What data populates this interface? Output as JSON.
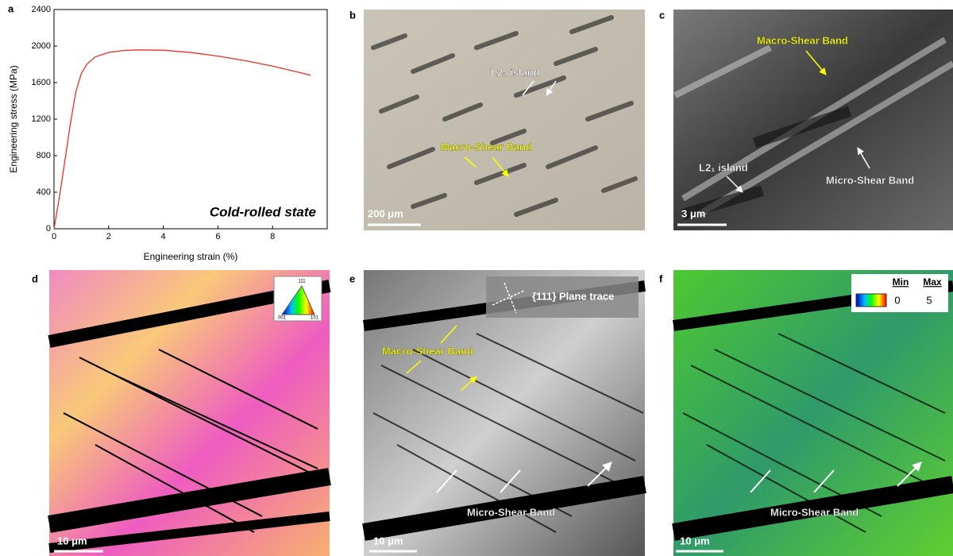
{
  "chart_data": {
    "type": "line",
    "panel_label": "a",
    "annotation": "Cold-rolled state",
    "x_label": "Engineering strain (%)",
    "y_label": "Engineering stress (MPa)",
    "x": [
      0,
      0.2,
      0.4,
      0.6,
      0.8,
      1.0,
      1.2,
      1.5,
      2.0,
      2.5,
      3.0,
      4.0,
      5.0,
      6.0,
      7.0,
      8.0,
      9.0,
      9.4
    ],
    "series": [
      {
        "color": "#e8302a",
        "values": [
          0,
          350,
          750,
          1150,
          1500,
          1700,
          1800,
          1880,
          1930,
          1950,
          1958,
          1955,
          1930,
          1890,
          1840,
          1780,
          1710,
          1680
        ]
      }
    ],
    "xlim": [
      0,
      10
    ],
    "ylim": [
      0,
      2400
    ],
    "xticks": [
      0,
      2,
      4,
      6,
      8
    ],
    "yticks": [
      0,
      400,
      800,
      1200,
      1600,
      2000,
      2400
    ]
  },
  "panels": [
    {
      "panel_label": "b",
      "labels": [
        "L2₁ island",
        "Macro-Shear Band"
      ],
      "scale_bar": "200 μm"
    },
    {
      "panel_label": "c",
      "labels": [
        "Macro-Shear Band",
        "L2₁ island",
        "Micro-Shear Band"
      ],
      "scale_bar": "3 μm"
    },
    {
      "panel_label": "d",
      "ipf_labels": [
        "111",
        "001",
        "101"
      ],
      "scale_bar": "10 μm"
    },
    {
      "panel_label": "e",
      "inset": "{111} Plane trace",
      "labels": [
        "Macro-Shear Band",
        "Micro-Shear Band"
      ],
      "scale_bar": "10 μm"
    },
    {
      "panel_label": "f",
      "colorbar": {
        "min_label": "Min",
        "max_label": "Max",
        "min": 0,
        "max": 5
      },
      "labels": [
        "Micro-Shear Band"
      ],
      "scale_bar": "10 μm"
    }
  ]
}
